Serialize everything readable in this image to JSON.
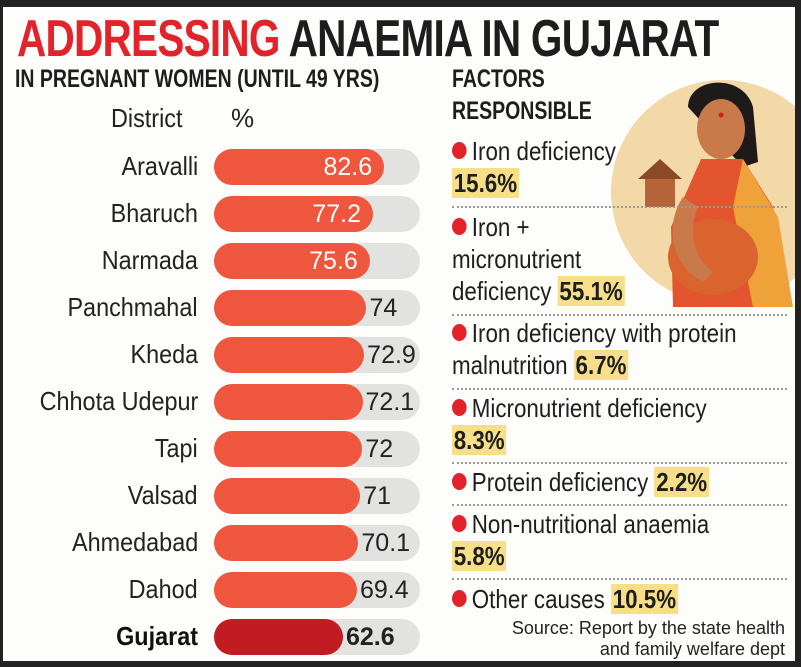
{
  "title": {
    "part1": "ADDRESSING",
    "part2": "ANAEMIA IN GUJARAT"
  },
  "colors": {
    "accent": "#e3232a",
    "bar": "#ee573d",
    "total_bar": "#c01c22",
    "track": "#e2e2e0",
    "highlight": "#f7df8a"
  },
  "chart_data": {
    "type": "bar",
    "orientation": "horizontal",
    "title": "IN PREGNANT WOMEN (UNTIL 49 YRS)",
    "xlabel": "%",
    "ylabel": "District",
    "xlim": [
      0,
      100
    ],
    "categories": [
      "Aravalli",
      "Bharuch",
      "Narmada",
      "Panchmahal",
      "Kheda",
      "Chhota Udepur",
      "Tapi",
      "Valsad",
      "Ahmedabad",
      "Dahod",
      "Gujarat"
    ],
    "values": [
      82.6,
      77.2,
      75.6,
      74,
      72.9,
      72.1,
      72,
      71,
      70.1,
      69.4,
      62.6
    ],
    "value_labels": [
      "82.6",
      "77.2",
      "75.6",
      "74",
      "72.9",
      "72.1",
      "72",
      "71",
      "70.1",
      "69.4",
      "62.6"
    ]
  },
  "factors": {
    "heading1": "FACTORS",
    "heading2": "RESPONSIBLE",
    "items": [
      {
        "l1": "Iron deficiency",
        "l2": "",
        "pct": "15.6%"
      },
      {
        "l1": "Iron +",
        "l2": "micronutrient",
        "l3": "deficiency",
        "pct": "55.1%"
      },
      {
        "l1": "Iron deficiency with protein",
        "l2": "malnutrition",
        "pct": "6.7%"
      },
      {
        "l1": "Micronutrient deficiency",
        "pct": "8.3%"
      },
      {
        "l1": "Protein deficiency",
        "pct": "2.2%"
      },
      {
        "l1": "Non-nutritional anaemia",
        "pct": "5.8%"
      },
      {
        "l1": "Other causes",
        "pct": "10.5%"
      }
    ]
  },
  "source": {
    "line1": "Source: Report by the state health",
    "line2": "and family welfare dept"
  },
  "illustration": "pregnant-woman-in-saree"
}
